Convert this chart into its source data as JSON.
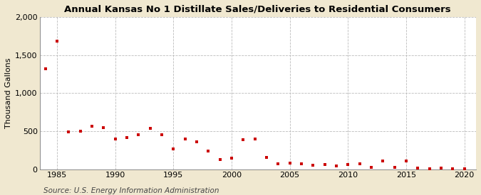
{
  "title": "Annual Kansas No 1 Distillate Sales/Deliveries to Residential Consumers",
  "ylabel": "Thousand Gallons",
  "source": "Source: U.S. Energy Information Administration",
  "background_color": "#f0e8d0",
  "plot_background_color": "#ffffff",
  "marker_color": "#cc0000",
  "years": [
    1984,
    1985,
    1986,
    1987,
    1988,
    1989,
    1990,
    1991,
    1992,
    1993,
    1994,
    1995,
    1996,
    1997,
    1998,
    1999,
    2000,
    2001,
    2002,
    2003,
    2004,
    2005,
    2006,
    2007,
    2008,
    2009,
    2010,
    2011,
    2012,
    2013,
    2014,
    2015,
    2016,
    2017,
    2018,
    2019,
    2020
  ],
  "values": [
    1320,
    1680,
    490,
    500,
    570,
    545,
    400,
    420,
    455,
    535,
    450,
    265,
    395,
    365,
    240,
    130,
    145,
    390,
    400,
    155,
    75,
    80,
    75,
    55,
    65,
    45,
    60,
    70,
    25,
    110,
    25,
    105,
    15,
    10,
    20,
    10,
    10
  ],
  "ylim": [
    0,
    2000
  ],
  "yticks": [
    0,
    500,
    1000,
    1500,
    2000
  ],
  "xlim": [
    1983.5,
    2021
  ],
  "xticks": [
    1985,
    1990,
    1995,
    2000,
    2005,
    2010,
    2015,
    2020
  ],
  "title_fontsize": 9.5,
  "axis_fontsize": 8,
  "source_fontsize": 7.5
}
